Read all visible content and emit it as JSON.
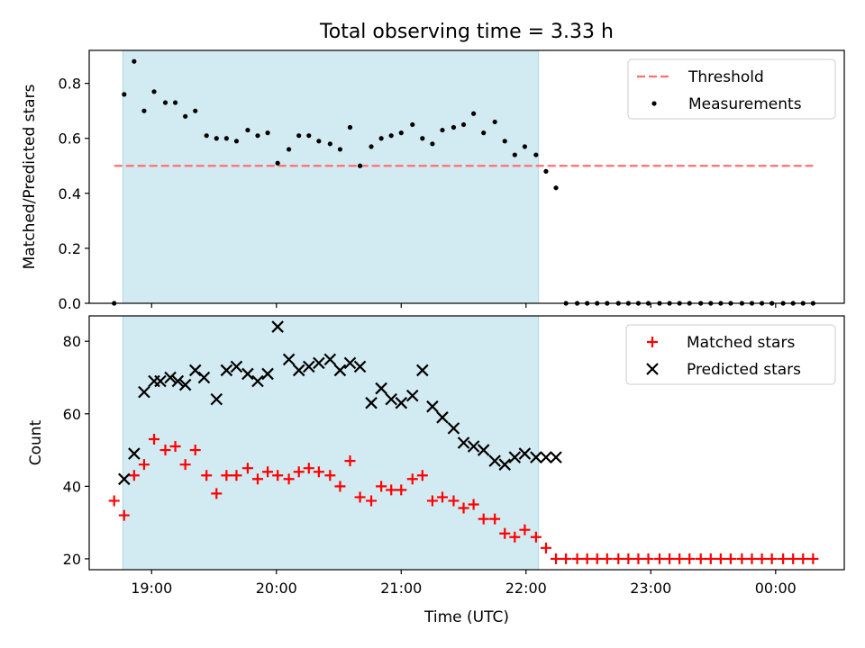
{
  "chart_data": {
    "title": "Total observing time = 3.33 h",
    "xlabel": "Time (UTC)",
    "x_unit": "hours UTC (times after midnight written as 24+)",
    "xlim": [
      18.5,
      24.55
    ],
    "x_ticks": [
      {
        "value": 19,
        "label": "19:00"
      },
      {
        "value": 20,
        "label": "20:00"
      },
      {
        "value": 21,
        "label": "21:00"
      },
      {
        "value": 22,
        "label": "22:00"
      },
      {
        "value": 23,
        "label": "23:00"
      },
      {
        "value": 24,
        "label": "00:00"
      }
    ],
    "observing_window": {
      "start": 18.77,
      "end": 22.1,
      "color": "#add8e6"
    },
    "panels": [
      {
        "type": "scatter",
        "ylabel": "Matched/Predicted stars",
        "ylim": [
          0,
          0.92
        ],
        "y_ticks": [
          "0.0",
          "0.2",
          "0.4",
          "0.6",
          "0.8"
        ],
        "legend_position": "top-right",
        "threshold": {
          "name": "Threshold",
          "value": 0.5,
          "x_range": [
            18.7,
            24.3
          ],
          "color": "#ff7070"
        },
        "series": [
          {
            "name": "Measurements",
            "marker": "dot",
            "color": "#000000",
            "x": [
              18.7,
              18.78,
              18.86,
              18.94,
              19.02,
              19.11,
              19.19,
              19.27,
              19.35,
              19.44,
              19.52,
              19.6,
              19.68,
              19.77,
              19.85,
              19.93,
              20.01,
              20.1,
              20.18,
              20.26,
              20.34,
              20.43,
              20.51,
              20.59,
              20.67,
              20.76,
              20.84,
              20.92,
              21.0,
              21.09,
              21.17,
              21.25,
              21.33,
              21.42,
              21.5,
              21.58,
              21.66,
              21.75,
              21.83,
              21.91,
              21.99,
              22.08,
              22.16,
              22.24,
              22.32,
              22.41,
              22.49,
              22.57,
              22.65,
              22.74,
              22.82,
              22.9,
              22.98,
              23.07,
              23.15,
              23.23,
              23.31,
              23.4,
              23.48,
              23.56,
              23.64,
              23.73,
              23.81,
              23.89,
              23.97,
              24.06,
              24.14,
              24.22,
              24.3
            ],
            "y": [
              0.0,
              0.76,
              0.88,
              0.7,
              0.77,
              0.73,
              0.73,
              0.68,
              0.7,
              0.61,
              0.6,
              0.6,
              0.59,
              0.63,
              0.61,
              0.62,
              0.51,
              0.56,
              0.61,
              0.61,
              0.59,
              0.58,
              0.56,
              0.64,
              0.5,
              0.57,
              0.6,
              0.61,
              0.62,
              0.65,
              0.6,
              0.58,
              0.63,
              0.64,
              0.65,
              0.69,
              0.62,
              0.66,
              0.59,
              0.54,
              0.57,
              0.54,
              0.48,
              0.42,
              0.0,
              0.0,
              0.0,
              0.0,
              0.0,
              0.0,
              0.0,
              0.0,
              0.0,
              0.0,
              0.0,
              0.0,
              0.0,
              0.0,
              0.0,
              0.0,
              0.0,
              0.0,
              0.0,
              0.0,
              0.0,
              0.0,
              0.0,
              0.0,
              0.0
            ]
          }
        ]
      },
      {
        "type": "scatter",
        "ylabel": "Count",
        "ylim": [
          17,
          87
        ],
        "y_ticks": [
          "20",
          "40",
          "60",
          "80"
        ],
        "legend_position": "top-right",
        "series": [
          {
            "name": "Matched stars",
            "marker": "plus",
            "color": "#ff0000",
            "x": [
              18.7,
              18.78,
              18.86,
              18.94,
              19.02,
              19.11,
              19.19,
              19.27,
              19.35,
              19.44,
              19.52,
              19.6,
              19.68,
              19.77,
              19.85,
              19.93,
              20.01,
              20.1,
              20.18,
              20.26,
              20.34,
              20.43,
              20.51,
              20.59,
              20.67,
              20.76,
              20.84,
              20.92,
              21.0,
              21.09,
              21.17,
              21.25,
              21.33,
              21.42,
              21.5,
              21.58,
              21.66,
              21.75,
              21.83,
              21.91,
              21.99,
              22.08,
              22.16,
              22.24,
              22.32,
              22.41,
              22.49,
              22.57,
              22.65,
              22.74,
              22.82,
              22.9,
              22.98,
              23.07,
              23.15,
              23.23,
              23.31,
              23.4,
              23.48,
              23.56,
              23.64,
              23.73,
              23.81,
              23.89,
              23.97,
              24.06,
              24.14,
              24.22,
              24.3
            ],
            "y": [
              36,
              32,
              43,
              46,
              53,
              50,
              51,
              46,
              50,
              43,
              38,
              43,
              43,
              45,
              42,
              44,
              43,
              42,
              44,
              45,
              44,
              43,
              40,
              47,
              37,
              36,
              40,
              39,
              39,
              42,
              43,
              36,
              37,
              36,
              34,
              35,
              31,
              31,
              27,
              26,
              28,
              26,
              23,
              20,
              20,
              20,
              20,
              20,
              20,
              20,
              20,
              20,
              20,
              20,
              20,
              20,
              20,
              20,
              20,
              20,
              20,
              20,
              20,
              20,
              20,
              20,
              20,
              20,
              20
            ]
          },
          {
            "name": "Predicted stars",
            "marker": "x",
            "color": "#000000",
            "x": [
              18.78,
              18.86,
              18.94,
              19.02,
              19.07,
              19.15,
              19.21,
              19.27,
              19.35,
              19.42,
              19.52,
              19.6,
              19.68,
              19.77,
              19.85,
              19.93,
              20.01,
              20.1,
              20.18,
              20.26,
              20.34,
              20.43,
              20.51,
              20.59,
              20.67,
              20.76,
              20.84,
              20.92,
              21.0,
              21.09,
              21.17,
              21.25,
              21.33,
              21.42,
              21.5,
              21.58,
              21.66,
              21.75,
              21.83,
              21.91,
              21.99,
              22.08,
              22.16,
              22.24
            ],
            "y": [
              42,
              49,
              66,
              69,
              69,
              70,
              69,
              68,
              72,
              70,
              64,
              72,
              73,
              71,
              69,
              71,
              84,
              75,
              72,
              73,
              74,
              75,
              72,
              74,
              73,
              63,
              67,
              64,
              63,
              65,
              72,
              62,
              59,
              56,
              52,
              51,
              50,
              47,
              46,
              48,
              49,
              48,
              48,
              48
            ]
          }
        ]
      }
    ]
  }
}
